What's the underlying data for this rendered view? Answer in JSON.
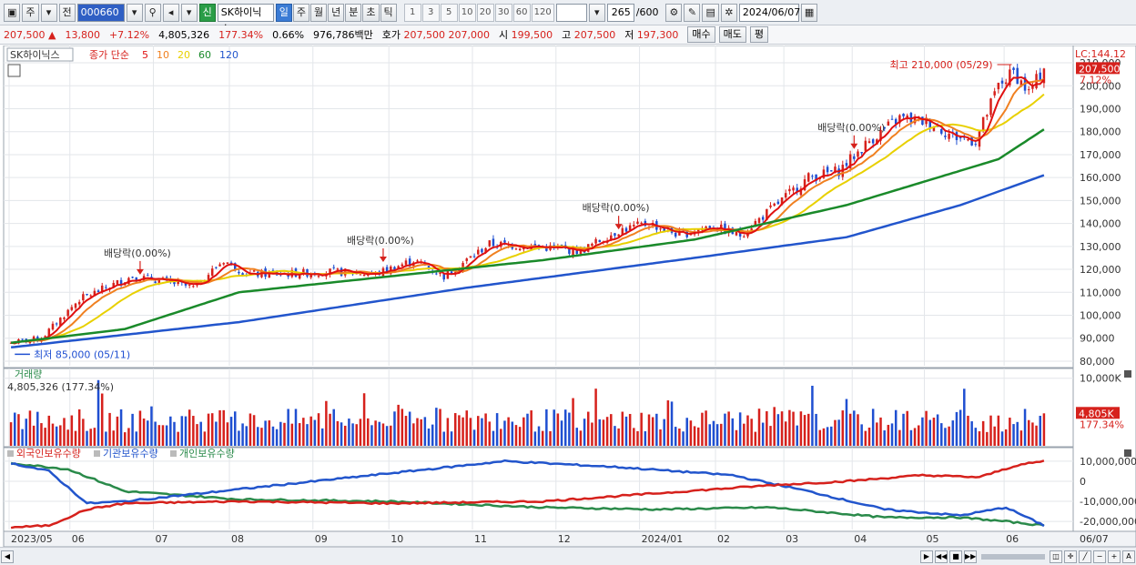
{
  "toolbar": {
    "period_main": "주",
    "prev_label": "전",
    "code": "000660",
    "new_label": "신",
    "name": "SK하이닉스",
    "tabs": [
      "일",
      "주",
      "월",
      "년",
      "분",
      "초",
      "틱"
    ],
    "active_tab": 0,
    "numbers": [
      "1",
      "3",
      "5",
      "10",
      "20",
      "30",
      "60",
      "120"
    ],
    "count": "265",
    "count_total": "/600",
    "date": "2024/06/07"
  },
  "pricebar": {
    "price": "207,500",
    "arrow": "▲",
    "change": "13,800",
    "change_pct": "+7.12%",
    "volume": "4,805,326",
    "vol_ratio": "177.34%",
    "turnover": "0.66%",
    "amount": "976,786백만",
    "quote_label": "호가",
    "ask": "207,500",
    "bid": "207,000",
    "open_label": "시",
    "open": "199,500",
    "high_label": "고",
    "high": "207,500",
    "low_label": "저",
    "low": "197,300",
    "buy_label": "매수",
    "sell_label": "매도",
    "eval_label": "평"
  },
  "chart_data": {
    "type": "candlestick",
    "title": "SK하이닉스",
    "legend": {
      "label": "종가 단순",
      "ma": [
        {
          "period": "5",
          "color": "#e01010"
        },
        {
          "period": "10",
          "color": "#f08020"
        },
        {
          "period": "20",
          "color": "#e8d000"
        },
        {
          "period": "60",
          "color": "#1a8a2a"
        },
        {
          "period": "120",
          "color": "#2255cc"
        }
      ]
    },
    "price_axis": {
      "ylim": [
        78000,
        212000
      ],
      "ticks": [
        "210,000",
        "200,000",
        "190,000",
        "180,000",
        "170,000",
        "160,000",
        "150,000",
        "140,000",
        "130,000",
        "120,000",
        "110,000",
        "100,000",
        "90,000",
        "80,000"
      ],
      "tick_values": [
        210000,
        200000,
        190000,
        180000,
        170000,
        160000,
        150000,
        140000,
        130000,
        120000,
        110000,
        100000,
        90000,
        80000
      ],
      "lc_label": "LC:144.12",
      "current_tag": "207,500",
      "current_value": 207500,
      "current_pct": "7.12%"
    },
    "annotations": {
      "high": "최고 210,000 (05/29)",
      "low": "최저 85,000 (05/11)",
      "dividend": [
        "배당락(0.00%)",
        "배당락(0.00%)",
        "배당락(0.00%)",
        "배당락(0.00%)"
      ]
    },
    "x_axis": {
      "labels": [
        "2023/05",
        "06",
        "07",
        "08",
        "09",
        "10",
        "11",
        "12",
        "2024/01",
        "02",
        "03",
        "04",
        "05",
        "06"
      ],
      "end_label": "06/07"
    },
    "close_anchors": [
      [
        0,
        88000
      ],
      [
        8,
        90000
      ],
      [
        18,
        107000
      ],
      [
        32,
        117000
      ],
      [
        40,
        115000
      ],
      [
        48,
        112000
      ],
      [
        56,
        124000
      ],
      [
        62,
        118000
      ],
      [
        72,
        118000
      ],
      [
        84,
        119000
      ],
      [
        96,
        118000
      ],
      [
        106,
        124000
      ],
      [
        114,
        117000
      ],
      [
        126,
        131000
      ],
      [
        138,
        130000
      ],
      [
        150,
        128000
      ],
      [
        160,
        137000
      ],
      [
        168,
        140000
      ],
      [
        176,
        135000
      ],
      [
        184,
        139000
      ],
      [
        192,
        135000
      ],
      [
        200,
        146000
      ],
      [
        210,
        160000
      ],
      [
        218,
        163000
      ],
      [
        226,
        176000
      ],
      [
        234,
        186000
      ],
      [
        242,
        184000
      ],
      [
        248,
        178000
      ],
      [
        254,
        176000
      ],
      [
        260,
        200000
      ],
      [
        264,
        206000
      ],
      [
        268,
        197000
      ],
      [
        272,
        207500
      ]
    ],
    "ma60_anchors": [
      [
        0,
        88000
      ],
      [
        30,
        94000
      ],
      [
        60,
        110000
      ],
      [
        100,
        117000
      ],
      [
        140,
        124000
      ],
      [
        180,
        133000
      ],
      [
        220,
        148000
      ],
      [
        260,
        168000
      ],
      [
        272,
        181000
      ]
    ],
    "ma120_anchors": [
      [
        0,
        86000
      ],
      [
        60,
        97000
      ],
      [
        120,
        112000
      ],
      [
        180,
        125000
      ],
      [
        220,
        134000
      ],
      [
        250,
        148000
      ],
      [
        272,
        161000
      ]
    ],
    "volume_panel": {
      "title": "거래량",
      "info": "4,805,326",
      "info_pct": "(177.34%)",
      "axis_max": "10,000K",
      "current_tag": "4,805K",
      "current_pct": "177.34%",
      "ylim": [
        0,
        10500000
      ]
    },
    "holdings_panel": {
      "legend": [
        "외국인보유수량",
        "기관보유수량",
        "개인보유수량"
      ],
      "colors": [
        "#d6211c",
        "#2255cc",
        "#2a8a4a"
      ],
      "ticks": [
        "10,000,000",
        "0",
        "-10,000,000",
        "-20,000,000"
      ],
      "tick_values": [
        10000000,
        0,
        -10000000,
        -20000000
      ],
      "ylim": [
        -24000000,
        14000000
      ],
      "foreign_anchors": [
        [
          0,
          -23000000
        ],
        [
          10,
          -22000000
        ],
        [
          20,
          -14000000
        ],
        [
          30,
          -11000000
        ],
        [
          60,
          -10000000
        ],
        [
          100,
          -11000000
        ],
        [
          140,
          -10000000
        ],
        [
          170,
          -6000000
        ],
        [
          200,
          -2000000
        ],
        [
          220,
          0
        ],
        [
          240,
          3000000
        ],
        [
          255,
          2000000
        ],
        [
          265,
          8000000
        ],
        [
          272,
          10000000
        ]
      ],
      "inst_anchors": [
        [
          0,
          9000000
        ],
        [
          10,
          5000000
        ],
        [
          20,
          -11000000
        ],
        [
          30,
          -10000000
        ],
        [
          60,
          -4000000
        ],
        [
          100,
          4000000
        ],
        [
          130,
          10000000
        ],
        [
          160,
          7000000
        ],
        [
          190,
          3000000
        ],
        [
          210,
          -5000000
        ],
        [
          230,
          -14000000
        ],
        [
          250,
          -17000000
        ],
        [
          262,
          -13000000
        ],
        [
          272,
          -22000000
        ]
      ],
      "indiv_anchors": [
        [
          0,
          9000000
        ],
        [
          15,
          6000000
        ],
        [
          30,
          -5000000
        ],
        [
          60,
          -9000000
        ],
        [
          100,
          -10000000
        ],
        [
          140,
          -13000000
        ],
        [
          170,
          -14000000
        ],
        [
          200,
          -13000000
        ],
        [
          230,
          -18000000
        ],
        [
          250,
          -18000000
        ],
        [
          262,
          -20000000
        ],
        [
          272,
          -22000000
        ]
      ]
    }
  }
}
